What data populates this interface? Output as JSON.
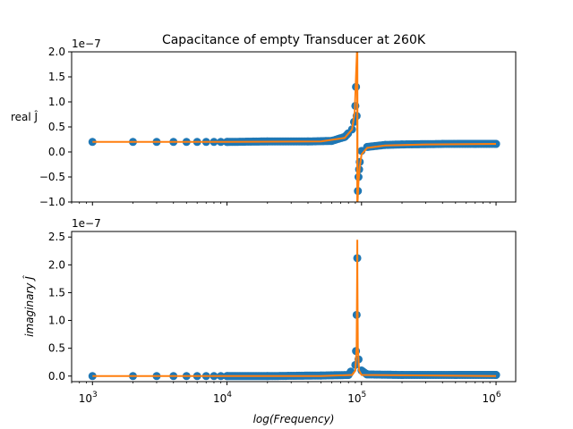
{
  "figure": {
    "title": "Capacitance of empty Transducer at 260K"
  },
  "colors": {
    "points": "#1f77b4",
    "fit": "#ff7f0e",
    "axis": "#000000"
  },
  "chart_data": [
    {
      "type": "scatter",
      "panel": "top",
      "title": "Capacitance of empty Transducer at 260K",
      "ylabel": "real Ĵ",
      "xlabel": "",
      "xscale": "log",
      "xlim": [
        700,
        1400000
      ],
      "ylim": [
        -1.0,
        2.0
      ],
      "y_multiplier": "1e−7",
      "yticks": [
        -1.0,
        -0.5,
        0.0,
        0.5,
        1.0,
        1.5,
        2.0
      ],
      "ytick_labels": [
        "−1.0",
        "−0.5",
        "0.0",
        "0.5",
        "1.0",
        "1.5",
        "2.0"
      ],
      "resonance_frequency": 93000,
      "series": [
        {
          "kind": "measured",
          "x": [
            1000,
            2000,
            3000,
            4000,
            5000,
            6000,
            7000,
            8000,
            9000,
            10000,
            20000,
            40000,
            60000,
            75000,
            85000,
            88000,
            90000,
            91000,
            92000,
            94000,
            95000,
            96000,
            97000,
            100000,
            110000,
            150000,
            200000,
            400000,
            700000,
            1000000
          ],
          "y": [
            0.2,
            0.2,
            0.2,
            0.2,
            0.2,
            0.2,
            0.2,
            0.2,
            0.2,
            0.2,
            0.21,
            0.21,
            0.22,
            0.3,
            0.45,
            0.6,
            0.92,
            1.3,
            0.72,
            -0.78,
            -0.5,
            -0.35,
            -0.2,
            0.02,
            0.1,
            0.14,
            0.15,
            0.16,
            0.16,
            0.16
          ]
        },
        {
          "kind": "fit",
          "x": [
            1000,
            10000,
            50000,
            75000,
            85000,
            89000,
            91000,
            92500,
            93000,
            93500,
            95000,
            97000,
            100000,
            110000,
            150000,
            300000,
            1000000
          ],
          "y": [
            0.2,
            0.2,
            0.21,
            0.28,
            0.45,
            0.8,
            1.5,
            2.0,
            2.0,
            -1.0,
            -0.6,
            -0.3,
            -0.05,
            0.08,
            0.13,
            0.15,
            0.16
          ]
        }
      ]
    },
    {
      "type": "scatter",
      "panel": "bottom",
      "ylabel": "imaginary Ĵ",
      "xlabel": "log(Frequency)",
      "xscale": "log",
      "xlim": [
        700,
        1400000
      ],
      "ylim": [
        -0.1,
        2.6
      ],
      "y_multiplier": "1e−7",
      "yticks": [
        0.0,
        0.5,
        1.0,
        1.5,
        2.0,
        2.5
      ],
      "ytick_labels": [
        "0.0",
        "0.5",
        "1.0",
        "1.5",
        "2.0",
        "2.5"
      ],
      "xticks": [
        1000,
        10000,
        100000,
        1000000
      ],
      "xtick_base": "10",
      "xtick_exponents": [
        "3",
        "4",
        "5",
        "6"
      ],
      "series": [
        {
          "kind": "measured",
          "x": [
            1000,
            2000,
            3000,
            4000,
            5000,
            6000,
            7000,
            8000,
            9000,
            10000,
            20000,
            50000,
            80000,
            90000,
            91000,
            92000,
            93000,
            95000,
            100000,
            110000,
            200000,
            500000,
            1000000
          ],
          "y": [
            0.0,
            0.0,
            0.0,
            0.0,
            0.0,
            0.0,
            0.0,
            0.0,
            0.0,
            0.0,
            0.0,
            0.01,
            0.02,
            0.2,
            0.45,
            1.1,
            2.12,
            0.3,
            0.1,
            0.03,
            0.02,
            0.02,
            0.02
          ]
        },
        {
          "kind": "fit",
          "x": [
            1000,
            50000,
            85000,
            90000,
            92000,
            92800,
            93000,
            93200,
            94000,
            96000,
            100000,
            1000000
          ],
          "y": [
            0.0,
            0.0,
            0.02,
            0.1,
            0.5,
            1.8,
            2.45,
            1.8,
            0.5,
            0.1,
            0.02,
            0.0
          ]
        }
      ]
    }
  ]
}
